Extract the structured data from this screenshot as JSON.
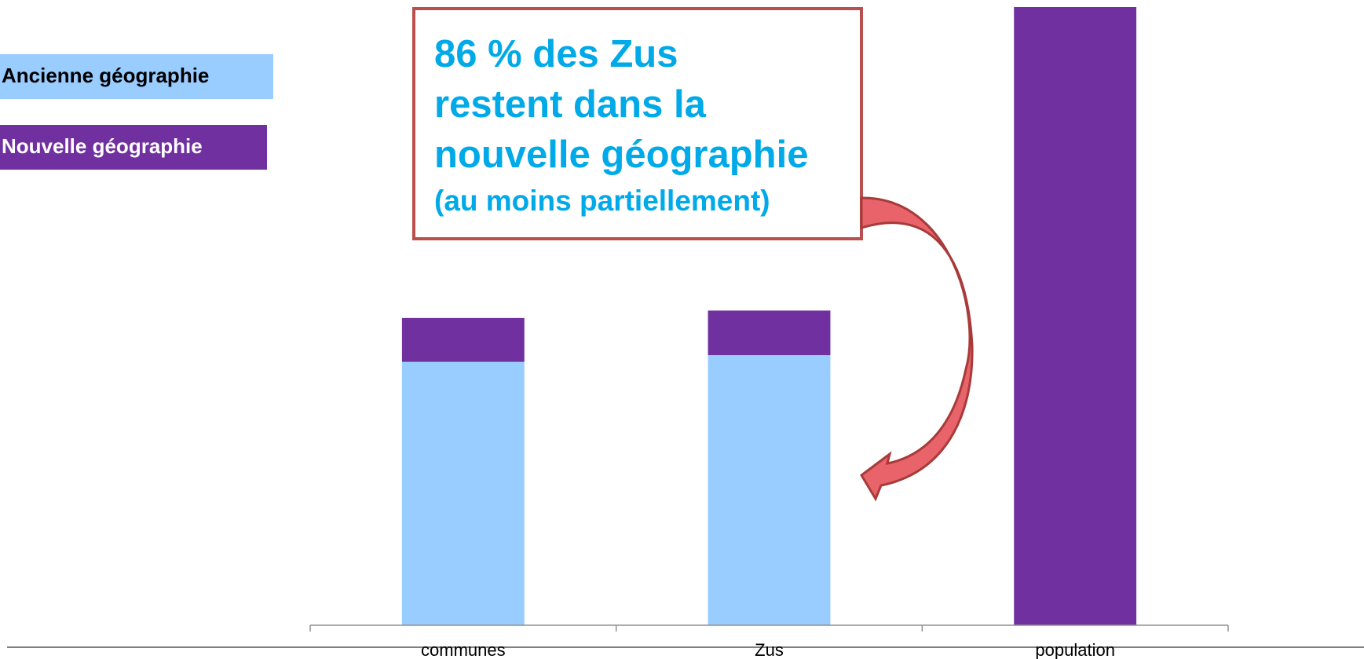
{
  "chart_data": {
    "type": "stacked_bar",
    "categories": [
      "communes",
      "Zus",
      "population"
    ],
    "series": [
      {
        "name": "Ancienne géographie",
        "color": "#99ccff",
        "values": [
          42.6,
          43.7,
          0
        ]
      },
      {
        "name": "Nouvelle géographie",
        "color": "#7030a0",
        "values": [
          7.1,
          7.2,
          100
        ]
      }
    ],
    "ylim": [
      0,
      100
    ],
    "legend": "top-left",
    "annotations": [
      "86 % des Zus",
      "restent dans la",
      "nouvelle géographie",
      "(au moins partiellement)"
    ]
  }
}
